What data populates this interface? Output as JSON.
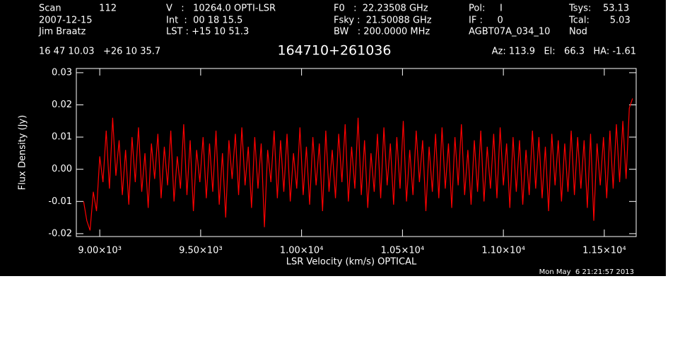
{
  "header": {
    "rows": [
      [
        "Scan",
        "112",
        "V   :   10264.0 OPTI-LSR",
        "F0   :  22.23508 GHz",
        "Pol:     I",
        "Tsys:    53.13"
      ],
      [
        "2007-12-15",
        "Int  :  00 18 15.5",
        "Fsky :  21.50088 GHz",
        "IF :     0",
        "Tcal:       5.03"
      ],
      [
        "Jim Braatz",
        "LST : +15 10 51.3",
        "BW   : 200.0000 MHz",
        "AGBT07A_034_10",
        "Nod"
      ]
    ],
    "coords": "16 47 10.03   +26 10 35.7",
    "pointing": "Az: 113.9   El:   66.3   HA: -1.61",
    "timestamp": "Mon May  6 21:21:57 2013"
  },
  "chart_data": {
    "type": "line",
    "title": "164710+261036",
    "xlabel": "LSR Velocity (km/s) OPTICAL",
    "ylabel": "Flux Density (Jy)",
    "color": "#ff0000",
    "xlim": [
      8884,
      11658
    ],
    "ylim": [
      -0.0209,
      0.0313
    ],
    "xticks": [
      {
        "value": 9000,
        "label": "9.00×10³"
      },
      {
        "value": 9500,
        "label": "9.50×10³"
      },
      {
        "value": 10000,
        "label": "1.00×10⁴"
      },
      {
        "value": 10500,
        "label": "1.05×10⁴"
      },
      {
        "value": 11000,
        "label": "1.10×10⁴"
      },
      {
        "value": 11500,
        "label": "1.15×10⁴"
      }
    ],
    "yticks": [
      -0.02,
      -0.01,
      {
        "value": 0,
        "label": "0.00"
      },
      0.01,
      0.02,
      0.03
    ],
    "x": [
      8920,
      8936,
      8952,
      8968,
      8984,
      9000,
      9016,
      9032,
      9048,
      9064,
      9080,
      9096,
      9112,
      9128,
      9144,
      9160,
      9176,
      9192,
      9208,
      9224,
      9240,
      9256,
      9272,
      9288,
      9304,
      9320,
      9336,
      9352,
      9368,
      9384,
      9400,
      9416,
      9432,
      9448,
      9464,
      9480,
      9496,
      9512,
      9528,
      9544,
      9560,
      9576,
      9592,
      9608,
      9624,
      9640,
      9656,
      9672,
      9688,
      9704,
      9720,
      9736,
      9752,
      9768,
      9784,
      9800,
      9816,
      9832,
      9848,
      9864,
      9880,
      9896,
      9912,
      9928,
      9944,
      9960,
      9976,
      9992,
      10008,
      10024,
      10040,
      10056,
      10072,
      10088,
      10104,
      10120,
      10136,
      10152,
      10168,
      10184,
      10200,
      10216,
      10232,
      10248,
      10264,
      10280,
      10296,
      10312,
      10328,
      10344,
      10360,
      10376,
      10392,
      10408,
      10424,
      10440,
      10456,
      10472,
      10488,
      10504,
      10520,
      10536,
      10552,
      10568,
      10584,
      10600,
      10616,
      10632,
      10648,
      10664,
      10680,
      10696,
      10712,
      10728,
      10744,
      10760,
      10776,
      10792,
      10808,
      10824,
      10840,
      10856,
      10872,
      10888,
      10904,
      10920,
      10936,
      10952,
      10968,
      10984,
      11000,
      11016,
      11032,
      11048,
      11064,
      11080,
      11096,
      11112,
      11128,
      11144,
      11160,
      11176,
      11192,
      11208,
      11224,
      11240,
      11256,
      11272,
      11288,
      11304,
      11320,
      11336,
      11352,
      11368,
      11384,
      11400,
      11416,
      11432,
      11448,
      11464,
      11480,
      11496,
      11512,
      11528,
      11544,
      11560,
      11576,
      11592,
      11608,
      11624,
      11640
    ],
    "values": [
      -0.01,
      -0.016,
      -0.019,
      -0.007,
      -0.013,
      0.004,
      -0.004,
      0.012,
      -0.006,
      0.016,
      -0.002,
      0.009,
      -0.008,
      0.006,
      -0.011,
      0.01,
      -0.004,
      0.013,
      -0.007,
      0.005,
      -0.012,
      0.008,
      -0.003,
      0.011,
      -0.009,
      0.007,
      -0.005,
      0.012,
      -0.01,
      0.004,
      -0.006,
      0.014,
      -0.008,
      0.009,
      -0.013,
      0.006,
      -0.004,
      0.01,
      -0.009,
      0.008,
      -0.007,
      0.012,
      -0.011,
      0.005,
      -0.015,
      0.009,
      -0.003,
      0.011,
      -0.008,
      0.013,
      -0.005,
      0.007,
      -0.012,
      0.01,
      -0.006,
      0.008,
      -0.018,
      0.006,
      -0.004,
      0.012,
      -0.009,
      0.009,
      -0.007,
      0.011,
      -0.01,
      0.005,
      -0.006,
      0.013,
      -0.008,
      0.007,
      -0.011,
      0.01,
      -0.005,
      0.008,
      -0.013,
      0.012,
      -0.007,
      0.006,
      -0.009,
      0.011,
      -0.004,
      0.014,
      -0.01,
      0.007,
      -0.006,
      0.016,
      -0.008,
      0.009,
      -0.012,
      0.005,
      -0.007,
      0.011,
      -0.009,
      0.013,
      -0.005,
      0.008,
      -0.011,
      0.01,
      -0.006,
      0.015,
      -0.01,
      0.006,
      -0.008,
      0.012,
      -0.004,
      0.009,
      -0.013,
      0.007,
      -0.007,
      0.011,
      -0.009,
      0.013,
      -0.006,
      0.008,
      -0.012,
      0.01,
      -0.005,
      0.014,
      -0.008,
      0.006,
      -0.011,
      0.009,
      -0.007,
      0.012,
      -0.01,
      0.007,
      -0.006,
      0.011,
      -0.009,
      0.013,
      -0.005,
      0.008,
      -0.012,
      0.01,
      -0.007,
      0.009,
      -0.011,
      0.006,
      -0.008,
      0.012,
      -0.006,
      0.01,
      -0.009,
      0.007,
      -0.013,
      0.011,
      -0.005,
      0.009,
      -0.01,
      0.008,
      -0.007,
      0.012,
      -0.008,
      0.01,
      -0.006,
      0.009,
      -0.012,
      0.011,
      -0.016,
      0.008,
      -0.005,
      0.01,
      -0.009,
      0.012,
      -0.006,
      0.014,
      -0.004,
      0.015,
      -0.003,
      0.019,
      0.022
    ]
  }
}
